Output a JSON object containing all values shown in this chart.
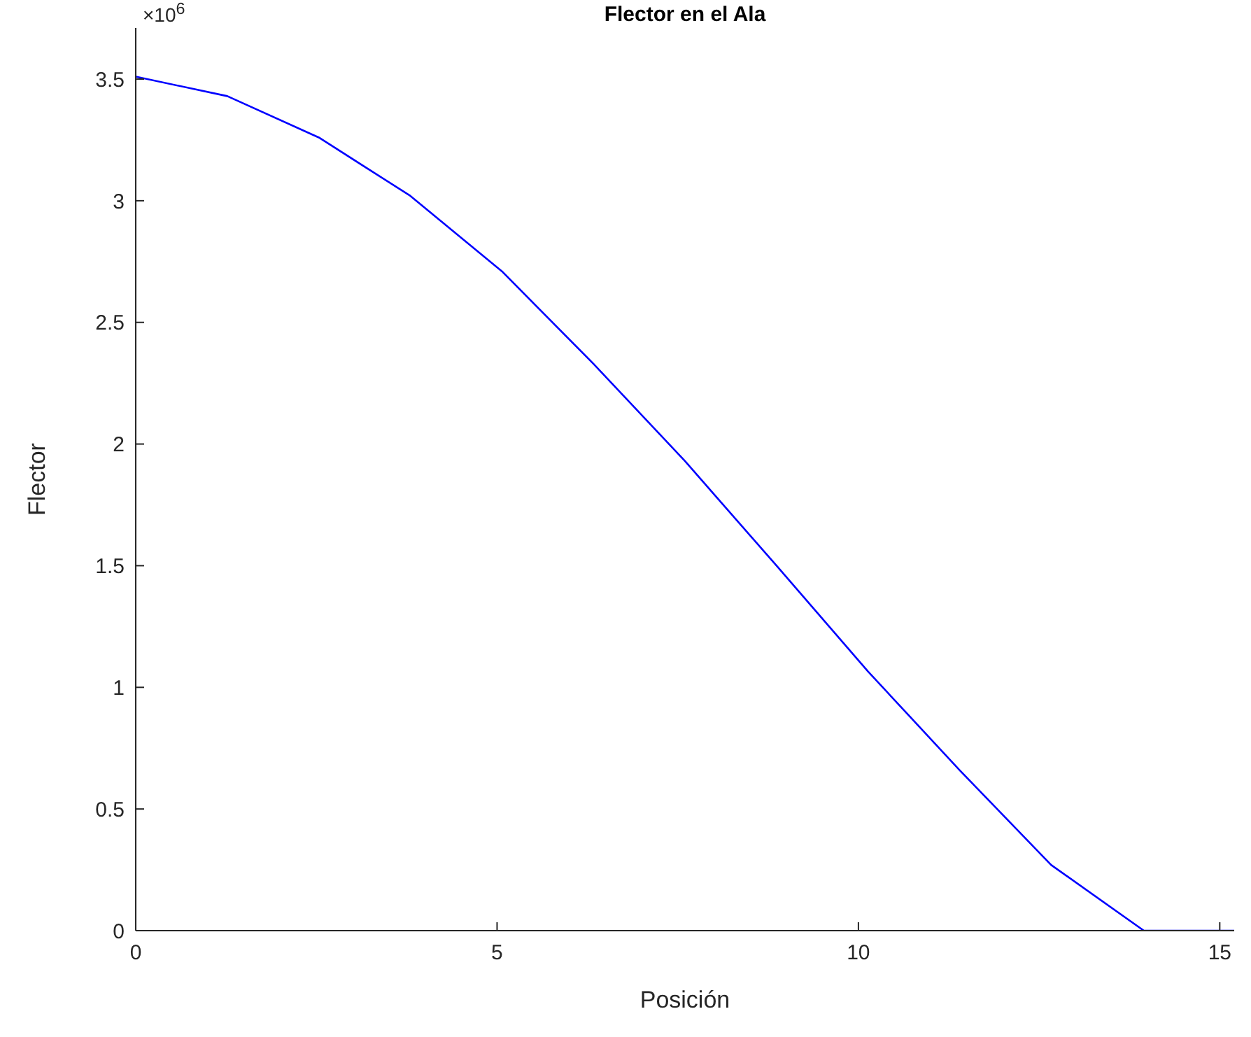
{
  "chart_data": {
    "type": "line",
    "title": "Flector en el Ala",
    "xlabel": "Posición",
    "ylabel": "Flector",
    "annotations": [
      "×10$^{6}$"
    ],
    "x": [
      0,
      1.267,
      2.533,
      3.8,
      5.067,
      6.333,
      7.6,
      8.867,
      10.133,
      11.4,
      12.667,
      13.95,
      15.2
    ],
    "series": [
      {
        "color": "#0000ff",
        "values": [
          3.51,
          3.43,
          3.26,
          3.02,
          2.71,
          2.33,
          1.93,
          1.5,
          1.065,
          0.66,
          0.27,
          0,
          0
        ]
      }
    ],
    "xlim": [
      0,
      15.2
    ],
    "xticks": [
      0,
      5,
      10,
      15
    ],
    "ylim": [
      0,
      3.71
    ],
    "yticks": [
      0,
      0.5,
      1,
      1.5,
      2,
      2.5,
      3,
      3.5
    ],
    "grid": false,
    "legend": false,
    "marker": "none",
    "line_style": "solid"
  }
}
